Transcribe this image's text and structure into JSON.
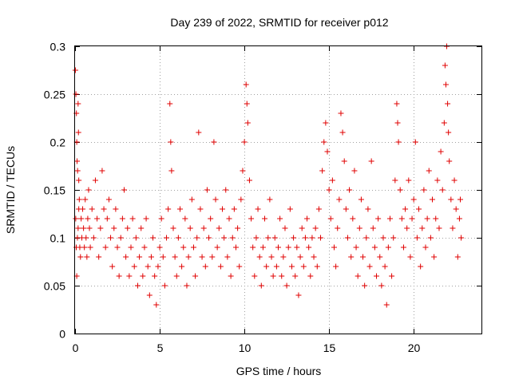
{
  "chart_data": {
    "type": "scatter",
    "title": "Day 239 of 2022, SRMTID for receiver p012",
    "xlabel": "GPS time / hours",
    "ylabel": "SRMTID / TECUs",
    "xlim": [
      0,
      24.0
    ],
    "ylim": [
      0,
      0.3
    ],
    "xticks": [
      0,
      5,
      10,
      15,
      20
    ],
    "yticks": [
      0,
      0.05,
      0.1,
      0.15,
      0.2,
      0.25,
      0.3
    ],
    "xtick_labels": [
      "0",
      "5",
      "10",
      "15",
      "20"
    ],
    "ytick_labels": [
      "0",
      "0.05",
      "0.1",
      "0.15",
      "0.2",
      "0.25",
      "0.3"
    ],
    "grid": true,
    "marker": "+",
    "colors": {
      "series": "#e00000",
      "grid": "#a0a0a0",
      "axis": "#000000"
    },
    "series": [
      {
        "name": "SRMTID",
        "points": [
          [
            0.02,
            0.275
          ],
          [
            0.05,
            0.25
          ],
          [
            0.08,
            0.23
          ],
          [
            0.1,
            0.2
          ],
          [
            0.12,
            0.18
          ],
          [
            0.15,
            0.17
          ],
          [
            0.18,
            0.24
          ],
          [
            0.2,
            0.21
          ],
          [
            0.22,
            0.16
          ],
          [
            0.25,
            0.14
          ],
          [
            0.04,
            0.12
          ],
          [
            0.07,
            0.09
          ],
          [
            0.1,
            0.06
          ],
          [
            0.14,
            0.1
          ],
          [
            0.18,
            0.11
          ],
          [
            0.22,
            0.13
          ],
          [
            0.28,
            0.09
          ],
          [
            0.32,
            0.08
          ],
          [
            0.36,
            0.12
          ],
          [
            0.4,
            0.1
          ],
          [
            0.45,
            0.13
          ],
          [
            0.5,
            0.11
          ],
          [
            0.55,
            0.09
          ],
          [
            0.6,
            0.14
          ],
          [
            0.65,
            0.1
          ],
          [
            0.7,
            0.08
          ],
          [
            0.75,
            0.12
          ],
          [
            0.8,
            0.15
          ],
          [
            0.85,
            0.11
          ],
          [
            0.9,
            0.09
          ],
          [
            1.0,
            0.13
          ],
          [
            1.1,
            0.1
          ],
          [
            1.2,
            0.16
          ],
          [
            1.3,
            0.12
          ],
          [
            1.4,
            0.08
          ],
          [
            1.5,
            0.11
          ],
          [
            1.6,
            0.17
          ],
          [
            1.7,
            0.13
          ],
          [
            1.8,
            0.09
          ],
          [
            1.9,
            0.12
          ],
          [
            2.0,
            0.14
          ],
          [
            2.1,
            0.1
          ],
          [
            2.2,
            0.07
          ],
          [
            2.3,
            0.11
          ],
          [
            2.4,
            0.13
          ],
          [
            2.5,
            0.09
          ],
          [
            2.6,
            0.06
          ],
          [
            2.7,
            0.1
          ],
          [
            2.8,
            0.12
          ],
          [
            2.9,
            0.15
          ],
          [
            3.0,
            0.08
          ],
          [
            3.1,
            0.11
          ],
          [
            3.2,
            0.06
          ],
          [
            3.3,
            0.09
          ],
          [
            3.4,
            0.12
          ],
          [
            3.5,
            0.07
          ],
          [
            3.6,
            0.1
          ],
          [
            3.7,
            0.05
          ],
          [
            3.8,
            0.08
          ],
          [
            3.9,
            0.11
          ],
          [
            4.0,
            0.06
          ],
          [
            4.1,
            0.09
          ],
          [
            4.2,
            0.12
          ],
          [
            4.3,
            0.07
          ],
          [
            4.4,
            0.04
          ],
          [
            4.5,
            0.08
          ],
          [
            4.6,
            0.1
          ],
          [
            4.7,
            0.06
          ],
          [
            4.8,
            0.03
          ],
          [
            4.9,
            0.07
          ],
          [
            5.0,
            0.09
          ],
          [
            5.1,
            0.12
          ],
          [
            5.2,
            0.08
          ],
          [
            5.3,
            0.05
          ],
          [
            5.4,
            0.1
          ],
          [
            5.5,
            0.13
          ],
          [
            5.6,
            0.24
          ],
          [
            5.65,
            0.2
          ],
          [
            5.7,
            0.17
          ],
          [
            5.8,
            0.11
          ],
          [
            5.9,
            0.08
          ],
          [
            6.0,
            0.06
          ],
          [
            6.1,
            0.1
          ],
          [
            6.2,
            0.13
          ],
          [
            6.3,
            0.07
          ],
          [
            6.4,
            0.09
          ],
          [
            6.5,
            0.12
          ],
          [
            6.6,
            0.05
          ],
          [
            6.7,
            0.08
          ],
          [
            6.8,
            0.11
          ],
          [
            6.9,
            0.14
          ],
          [
            7.0,
            0.09
          ],
          [
            7.1,
            0.06
          ],
          [
            7.2,
            0.1
          ],
          [
            7.3,
            0.21
          ],
          [
            7.4,
            0.13
          ],
          [
            7.5,
            0.08
          ],
          [
            7.6,
            0.11
          ],
          [
            7.7,
            0.07
          ],
          [
            7.8,
            0.15
          ],
          [
            7.9,
            0.1
          ],
          [
            8.0,
            0.12
          ],
          [
            8.1,
            0.08
          ],
          [
            8.2,
            0.2
          ],
          [
            8.3,
            0.14
          ],
          [
            8.4,
            0.09
          ],
          [
            8.5,
            0.11
          ],
          [
            8.6,
            0.07
          ],
          [
            8.7,
            0.13
          ],
          [
            8.8,
            0.1
          ],
          [
            8.9,
            0.15
          ],
          [
            9.0,
            0.08
          ],
          [
            9.1,
            0.12
          ],
          [
            9.2,
            0.06
          ],
          [
            9.3,
            0.1
          ],
          [
            9.4,
            0.13
          ],
          [
            9.5,
            0.09
          ],
          [
            9.6,
            0.11
          ],
          [
            9.7,
            0.07
          ],
          [
            9.8,
            0.14
          ],
          [
            9.9,
            0.17
          ],
          [
            10.0,
            0.2
          ],
          [
            10.1,
            0.26
          ],
          [
            10.15,
            0.24
          ],
          [
            10.2,
            0.22
          ],
          [
            10.3,
            0.16
          ],
          [
            10.4,
            0.12
          ],
          [
            10.5,
            0.09
          ],
          [
            10.6,
            0.06
          ],
          [
            10.7,
            0.1
          ],
          [
            10.8,
            0.13
          ],
          [
            10.9,
            0.08
          ],
          [
            11.0,
            0.05
          ],
          [
            11.1,
            0.09
          ],
          [
            11.2,
            0.12
          ],
          [
            11.3,
            0.07
          ],
          [
            11.4,
            0.1
          ],
          [
            11.5,
            0.14
          ],
          [
            11.6,
            0.08
          ],
          [
            11.7,
            0.06
          ],
          [
            11.8,
            0.1
          ],
          [
            11.9,
            0.07
          ],
          [
            12.0,
            0.09
          ],
          [
            12.1,
            0.12
          ],
          [
            12.2,
            0.06
          ],
          [
            12.3,
            0.08
          ],
          [
            12.4,
            0.11
          ],
          [
            12.5,
            0.05
          ],
          [
            12.6,
            0.09
          ],
          [
            12.7,
            0.13
          ],
          [
            12.8,
            0.07
          ],
          [
            12.9,
            0.1
          ],
          [
            13.0,
            0.06
          ],
          [
            13.1,
            0.09
          ],
          [
            13.2,
            0.04
          ],
          [
            13.3,
            0.08
          ],
          [
            13.4,
            0.11
          ],
          [
            13.5,
            0.07
          ],
          [
            13.6,
            0.1
          ],
          [
            13.7,
            0.12
          ],
          [
            13.8,
            0.09
          ],
          [
            13.9,
            0.06
          ],
          [
            14.0,
            0.1
          ],
          [
            14.1,
            0.08
          ],
          [
            14.2,
            0.11
          ],
          [
            14.3,
            0.07
          ],
          [
            14.4,
            0.13
          ],
          [
            14.5,
            0.1
          ],
          [
            14.6,
            0.17
          ],
          [
            14.7,
            0.2
          ],
          [
            14.8,
            0.22
          ],
          [
            14.9,
            0.19
          ],
          [
            15.0,
            0.15
          ],
          [
            15.1,
            0.12
          ],
          [
            15.2,
            0.16
          ],
          [
            15.3,
            0.09
          ],
          [
            15.4,
            0.07
          ],
          [
            15.5,
            0.11
          ],
          [
            15.6,
            0.14
          ],
          [
            15.7,
            0.23
          ],
          [
            15.8,
            0.21
          ],
          [
            15.9,
            0.18
          ],
          [
            16.0,
            0.13
          ],
          [
            16.1,
            0.1
          ],
          [
            16.2,
            0.15
          ],
          [
            16.3,
            0.08
          ],
          [
            16.4,
            0.12
          ],
          [
            16.5,
            0.17
          ],
          [
            16.6,
            0.09
          ],
          [
            16.7,
            0.06
          ],
          [
            16.8,
            0.11
          ],
          [
            16.9,
            0.14
          ],
          [
            17.0,
            0.08
          ],
          [
            17.1,
            0.05
          ],
          [
            17.2,
            0.1
          ],
          [
            17.3,
            0.13
          ],
          [
            17.4,
            0.07
          ],
          [
            17.5,
            0.18
          ],
          [
            17.6,
            0.11
          ],
          [
            17.7,
            0.09
          ],
          [
            17.8,
            0.06
          ],
          [
            17.9,
            0.12
          ],
          [
            18.0,
            0.08
          ],
          [
            18.1,
            0.05
          ],
          [
            18.2,
            0.1
          ],
          [
            18.3,
            0.07
          ],
          [
            18.4,
            0.03
          ],
          [
            18.5,
            0.09
          ],
          [
            18.6,
            0.12
          ],
          [
            18.7,
            0.06
          ],
          [
            18.8,
            0.1
          ],
          [
            18.9,
            0.16
          ],
          [
            19.0,
            0.24
          ],
          [
            19.05,
            0.22
          ],
          [
            19.1,
            0.2
          ],
          [
            19.2,
            0.15
          ],
          [
            19.3,
            0.12
          ],
          [
            19.4,
            0.09
          ],
          [
            19.5,
            0.13
          ],
          [
            19.6,
            0.11
          ],
          [
            19.7,
            0.16
          ],
          [
            19.8,
            0.08
          ],
          [
            19.9,
            0.12
          ],
          [
            20.0,
            0.14
          ],
          [
            20.1,
            0.2
          ],
          [
            20.2,
            0.1
          ],
          [
            20.3,
            0.13
          ],
          [
            20.4,
            0.07
          ],
          [
            20.5,
            0.11
          ],
          [
            20.6,
            0.15
          ],
          [
            20.7,
            0.09
          ],
          [
            20.8,
            0.12
          ],
          [
            20.9,
            0.17
          ],
          [
            21.0,
            0.1
          ],
          [
            21.1,
            0.14
          ],
          [
            21.2,
            0.08
          ],
          [
            21.3,
            0.12
          ],
          [
            21.4,
            0.16
          ],
          [
            21.5,
            0.11
          ],
          [
            21.6,
            0.19
          ],
          [
            21.7,
            0.15
          ],
          [
            21.8,
            0.22
          ],
          [
            21.85,
            0.28
          ],
          [
            21.9,
            0.26
          ],
          [
            21.95,
            0.3
          ],
          [
            22.0,
            0.24
          ],
          [
            22.05,
            0.21
          ],
          [
            22.1,
            0.18
          ],
          [
            22.2,
            0.14
          ],
          [
            22.3,
            0.11
          ],
          [
            22.4,
            0.16
          ],
          [
            22.5,
            0.13
          ],
          [
            22.6,
            0.08
          ],
          [
            22.7,
            0.12
          ],
          [
            22.75,
            0.14
          ],
          [
            22.8,
            0.1
          ]
        ]
      }
    ]
  }
}
